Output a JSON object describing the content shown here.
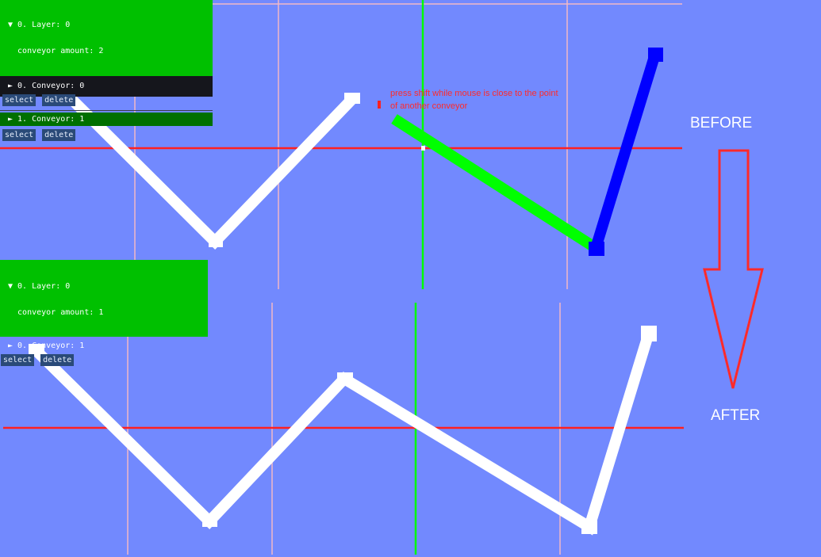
{
  "top_panel": {
    "layer_header_line1": "▼ 0. Layer: 0",
    "layer_header_line2": "  conveyor amount: 2",
    "conveyor0_label": "► 0. Conveyor: 0",
    "conveyor1_label": "► 1. Conveyor: 1",
    "select_label": "select",
    "delete_label": "delete"
  },
  "bottom_panel": {
    "layer_header_line1": "▼ 0. Layer: 0",
    "layer_header_line2": "  conveyor amount: 1",
    "conveyor0_label": "► 0. Conveyor: 1",
    "select_label": "select",
    "delete_label": "delete"
  },
  "hint_text": "press shift while mouse is close to the point of another conveyor",
  "before_label": "BEFORE",
  "after_label": "AFTER",
  "colors": {
    "background": "#7289fe",
    "axis_red": "#ff2020",
    "axis_green": "#00ff00",
    "grid_pink": "#f2b8c6",
    "conveyor_white": "#ffffff",
    "conveyor_green": "#00ff00",
    "conveyor_blue": "#0000ff",
    "arrow_red": "#ff2a2a"
  }
}
